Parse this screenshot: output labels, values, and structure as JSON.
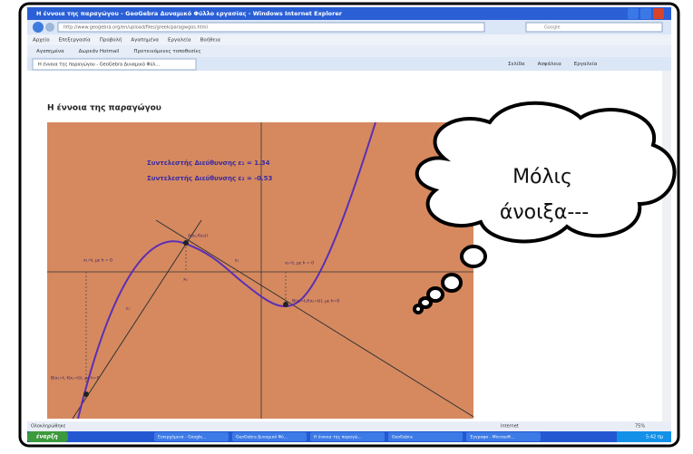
{
  "window": {
    "title": "Η έννοια της παραγώγου - GeoGebra Δυναμικό Φύλλο εργασίας - Windows Internet Explorer",
    "address": "http://www.geogebra.org/en/upload/files/greek/paragwgos.html",
    "search": "Google",
    "menu": [
      "Αρχείο",
      "Επεξεργασία",
      "Προβολή",
      "Αγαπημένα",
      "Εργαλεία",
      "Βοήθεια"
    ],
    "favorites": [
      "Αγαπημένα",
      "Δωρεάν Hotmail",
      "Προτεινόμενες τοποθεσίες"
    ],
    "tab": "Η έννοια της παραγώγου - GeoGebra Δυναμικό Φύλ...",
    "tools": [
      "Σελίδα",
      "Ασφάλεια",
      "Εργαλεία"
    ]
  },
  "page": {
    "heading": "Η έννοια της παραγώγου",
    "slope1": "Συντελεστής Διεύθυνσης ε₁ = 1.34",
    "slope2": "Συντελεστής Διεύθυνσης ε₂ = -0.53",
    "labels": [
      "x₁=t, με h = 0",
      "A(x₀,f(x₀))",
      "x₀",
      "ε₂",
      "x₂=t, με h = 0",
      "ε₁",
      "B(x₂=t,f(x₂=t)), με h=0",
      "B(x₁=t, f(x₁=t)), με h=0"
    ]
  },
  "status": {
    "text": "Ολοκληρώθηκε",
    "zone": "Internet",
    "zoom": "75%"
  },
  "taskbar": {
    "start": "έναρξη",
    "items": [
      "Εισερχόμενα - Google...",
      "GeoGebra Δυναμικό Φύ...",
      "Η έννοια της παραγώ...",
      "GeoGebra",
      "Έγγραφο - Microsoft..."
    ],
    "clock": "5:42 πμ"
  },
  "bubble": {
    "line1": "Μόλις",
    "line2": "άνοιξα---"
  }
}
